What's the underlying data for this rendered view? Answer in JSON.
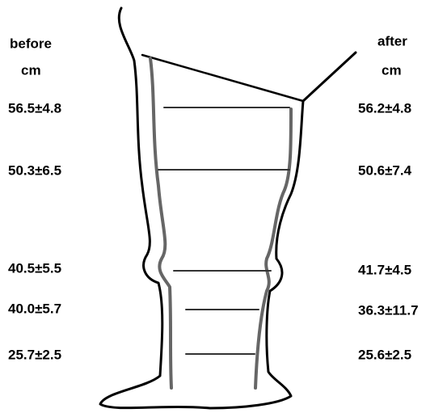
{
  "before": {
    "title": "before",
    "unit": "cm"
  },
  "after": {
    "title": "after",
    "unit": "cm"
  },
  "rows": [
    {
      "before": "56.5±4.8",
      "after": "56.2±4.8"
    },
    {
      "before": "50.3±6.5",
      "after": "50.6±7.4"
    },
    {
      "before": "40.5±5.5",
      "after": "41.7±4.5"
    },
    {
      "before": "40.0±5.7",
      "after": "36.3±11.7"
    },
    {
      "before": "25.7±2.5",
      "after": "25.6±2.5"
    }
  ]
}
